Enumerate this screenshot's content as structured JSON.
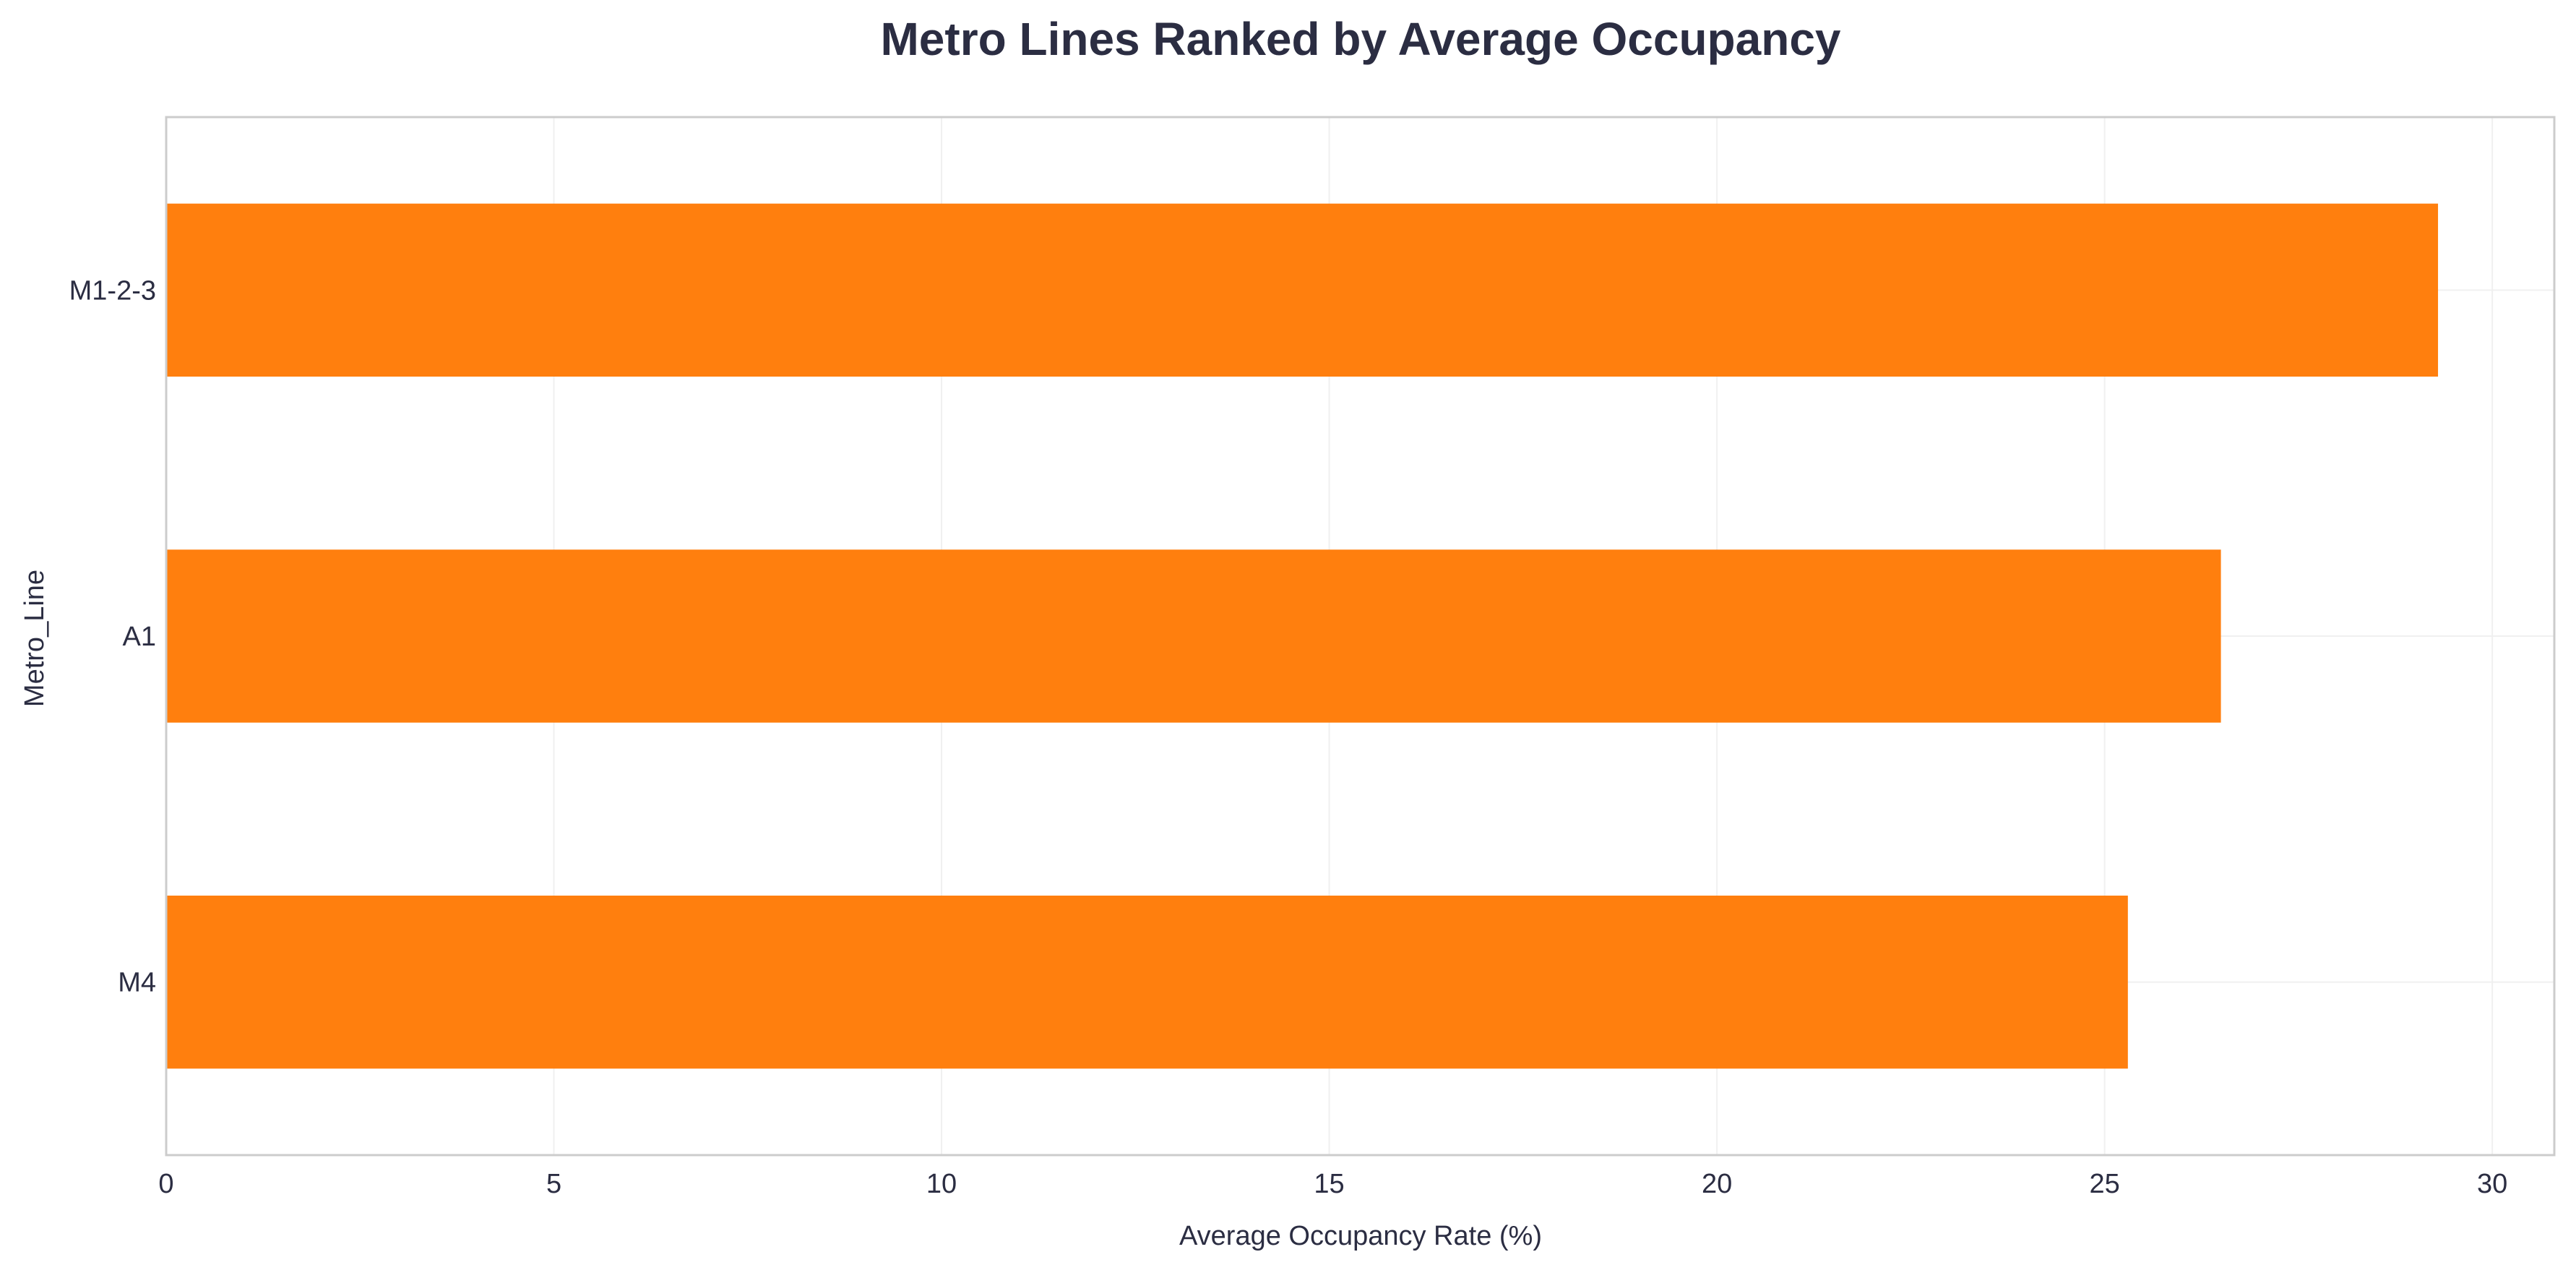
{
  "chart_data": {
    "type": "bar",
    "orientation": "horizontal",
    "title": "Metro Lines Ranked by Average Occupancy",
    "xlabel": "Average Occupancy Rate (%)",
    "ylabel": "Metro_Line",
    "categories": [
      "M1-2-3",
      "A1",
      "M4"
    ],
    "values": [
      29.3,
      26.5,
      25.3
    ],
    "xlim": [
      0,
      30.8
    ],
    "xticks": [
      0,
      5,
      10,
      15,
      20,
      25,
      30
    ],
    "grid": true,
    "legend": "none",
    "bar_color": "#ff7f0e",
    "text_color": "#2b2d42",
    "title_color": "#2b2d42",
    "axis_color": "#cccccc",
    "grid_color": "#f0f0f0"
  }
}
